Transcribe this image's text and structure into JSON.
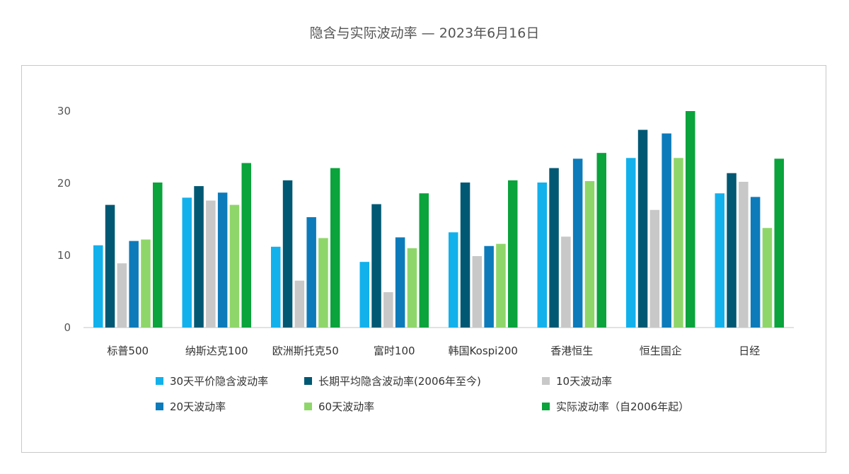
{
  "title": "隐含与实际波动率 — 2023年6月16日",
  "chart_data": {
    "type": "bar",
    "title": "隐含与实际波动率 — 2023年6月16日",
    "xlabel": "",
    "ylabel": "",
    "ylim": [
      0,
      30
    ],
    "yticks": [
      "0",
      "10",
      "20",
      "30"
    ],
    "grid": false,
    "legend": "bottom",
    "categories": [
      "标普500",
      "纳斯达克100",
      "欧洲斯托克50",
      "富时100",
      "韩国Kospi200",
      "香港恒生",
      "恒生国企",
      "日经"
    ],
    "series": [
      {
        "name": "30天平价隐含波动率",
        "color": "#12b1ec",
        "values": [
          11.4,
          18.0,
          11.2,
          9.1,
          13.2,
          20.1,
          23.5,
          18.6
        ]
      },
      {
        "name": "长期平均隐含波动率(2006年至今)",
        "color": "#015873",
        "values": [
          17.0,
          19.6,
          20.4,
          17.1,
          20.1,
          22.1,
          27.4,
          21.4
        ]
      },
      {
        "name": "10天波动率",
        "color": "#c8c8c8",
        "values": [
          8.9,
          17.6,
          6.5,
          4.9,
          9.9,
          12.6,
          16.3,
          20.2
        ]
      },
      {
        "name": "20天波动率",
        "color": "#0d7bba",
        "values": [
          12.0,
          18.7,
          15.3,
          12.5,
          11.3,
          23.4,
          26.9,
          18.1
        ]
      },
      {
        "name": "60天波动率",
        "color": "#8fd66a",
        "values": [
          12.2,
          17.0,
          12.4,
          11.0,
          11.6,
          20.3,
          23.5,
          13.8
        ]
      },
      {
        "name": "实际波动率（自2006年起）",
        "color": "#0aa33c",
        "values": [
          20.1,
          22.8,
          22.1,
          18.6,
          20.4,
          24.2,
          30.0,
          23.4
        ]
      }
    ]
  }
}
